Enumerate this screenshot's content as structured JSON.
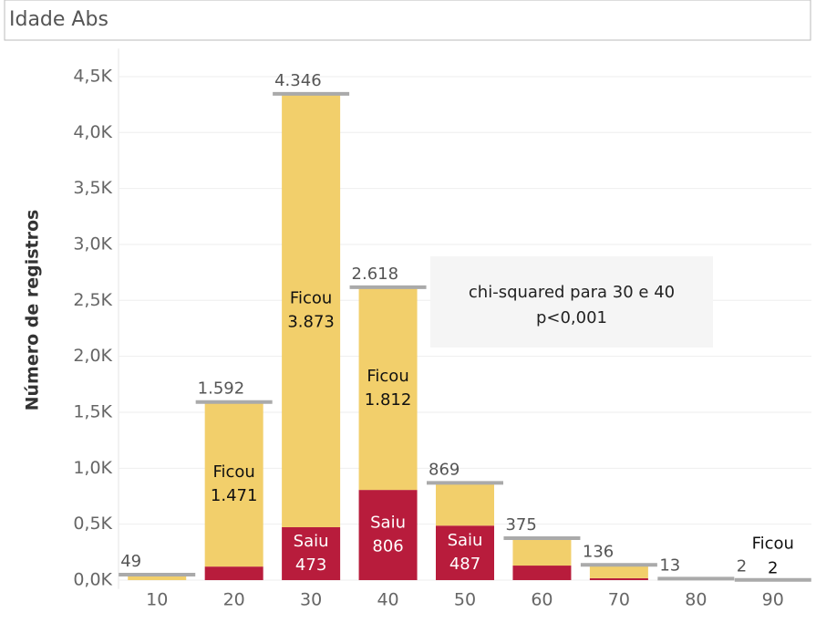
{
  "chart_data": {
    "type": "bar",
    "stacked": true,
    "title": "Idade Abs",
    "y_label": "Número de registros",
    "categories": [
      "10",
      "20",
      "30",
      "40",
      "50",
      "60",
      "70",
      "80",
      "90"
    ],
    "series": [
      {
        "name": "Saiu",
        "color": "#b81c3c",
        "values": [
          0,
          121,
          473,
          806,
          487,
          130,
          17,
          0,
          0
        ],
        "value_labels": [
          null,
          null,
          "473",
          "806",
          "487",
          null,
          null,
          null,
          null
        ]
      },
      {
        "name": "Ficou",
        "color": "#f2cf6b",
        "values": [
          49,
          1471,
          3873,
          1812,
          382,
          245,
          119,
          13,
          2
        ],
        "value_labels": [
          null,
          "1.471",
          "3.873",
          "1.812",
          null,
          null,
          null,
          null,
          "2"
        ]
      }
    ],
    "totals": {
      "values": [
        49,
        1592,
        4346,
        2618,
        869,
        375,
        136,
        13,
        2
      ],
      "value_labels": [
        "49",
        "1.592",
        "4.346",
        "2.618",
        "869",
        "375",
        "136",
        "13",
        "2"
      ],
      "color": "#aaaaaa"
    },
    "ylim": [
      -80,
      4750
    ],
    "yticks": [
      {
        "value": 0,
        "label": "0,0K"
      },
      {
        "value": 500,
        "label": "0,5K"
      },
      {
        "value": 1000,
        "label": "1,0K"
      },
      {
        "value": 1500,
        "label": "1,5K"
      },
      {
        "value": 2000,
        "label": "2,0K"
      },
      {
        "value": 2500,
        "label": "2,5K"
      },
      {
        "value": 3000,
        "label": "3,0K"
      },
      {
        "value": 3500,
        "label": "3,5K"
      },
      {
        "value": 4000,
        "label": "4,0K"
      },
      {
        "value": 4500,
        "label": "4,5K"
      }
    ],
    "grid": true,
    "annotation": {
      "lines": [
        "chi-squared para 30 e 40",
        "p<0,001"
      ]
    }
  }
}
